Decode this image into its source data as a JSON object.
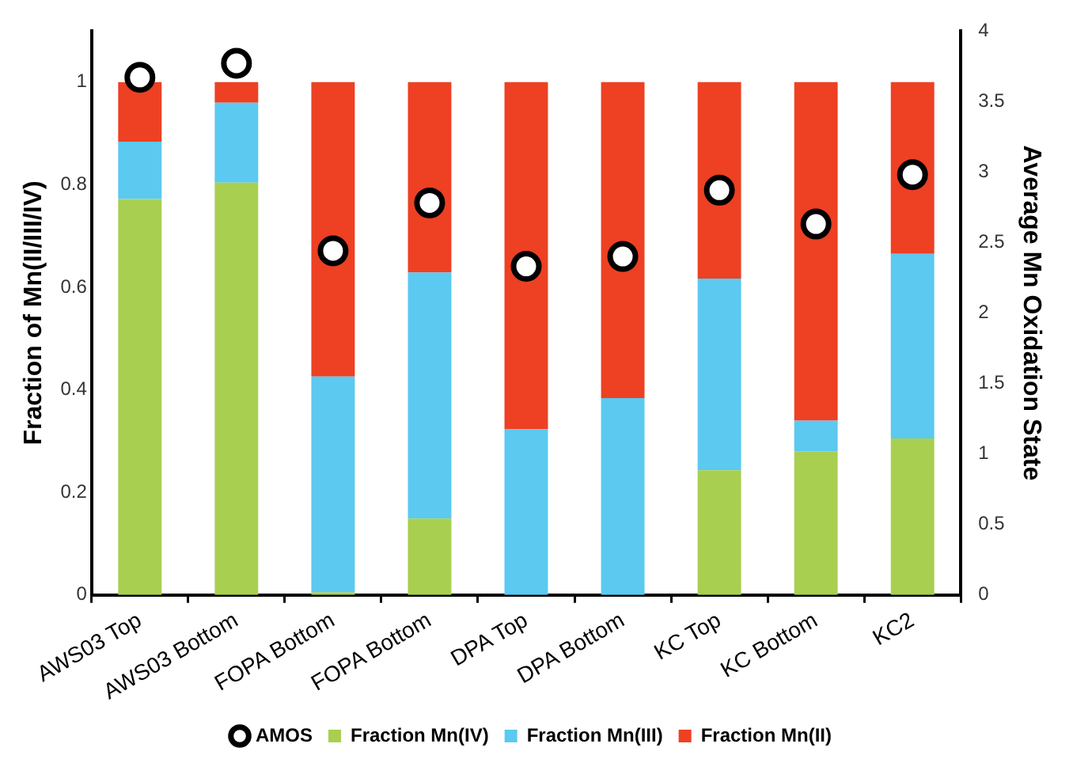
{
  "chart_data": {
    "type": "bar",
    "stacked": true,
    "categories": [
      "AWS03 Top",
      "AWS03 Bottom",
      "FOPA Bottom",
      "FOPA Bottom",
      "DPA Top",
      "DPA Bottom",
      "KC Top",
      "KC Bottom",
      "KC2"
    ],
    "series": [
      {
        "name": "Fraction Mn(IV)",
        "color": "#a8cf50",
        "values": [
          0.772,
          0.804,
          0.005,
          0.149,
          0,
          0,
          0.243,
          0.28,
          0.305
        ]
      },
      {
        "name": "Fraction Mn(III)",
        "color": "#5bc9f0",
        "values": [
          0.112,
          0.156,
          0.421,
          0.48,
          0.323,
          0.384,
          0.374,
          0.06,
          0.36
        ]
      },
      {
        "name": "Fraction Mn(II)",
        "color": "#ee4023",
        "values": [
          0.116,
          0.04,
          0.574,
          0.371,
          0.677,
          0.616,
          0.383,
          0.66,
          0.335
        ]
      },
      {
        "name": "AMOS",
        "type": "scatter",
        "axis": "y2",
        "color": "#000000",
        "marker": "circle",
        "values": [
          3.67,
          3.77,
          2.44,
          2.78,
          2.33,
          2.4,
          2.87,
          2.63,
          2.98
        ]
      }
    ],
    "ylabel": "Fraction of Mn(II/III/IV)",
    "y2label": "Average Mn Oxidation State",
    "ylim": [
      0,
      1.1
    ],
    "yticks": [
      0,
      0.2,
      0.4,
      0.6,
      0.8,
      1
    ],
    "y2lim": [
      0,
      4
    ],
    "y2ticks": [
      0,
      0.5,
      1,
      1.5,
      2,
      2.5,
      3,
      3.5,
      4
    ],
    "grid": false,
    "legend": "bottom"
  }
}
